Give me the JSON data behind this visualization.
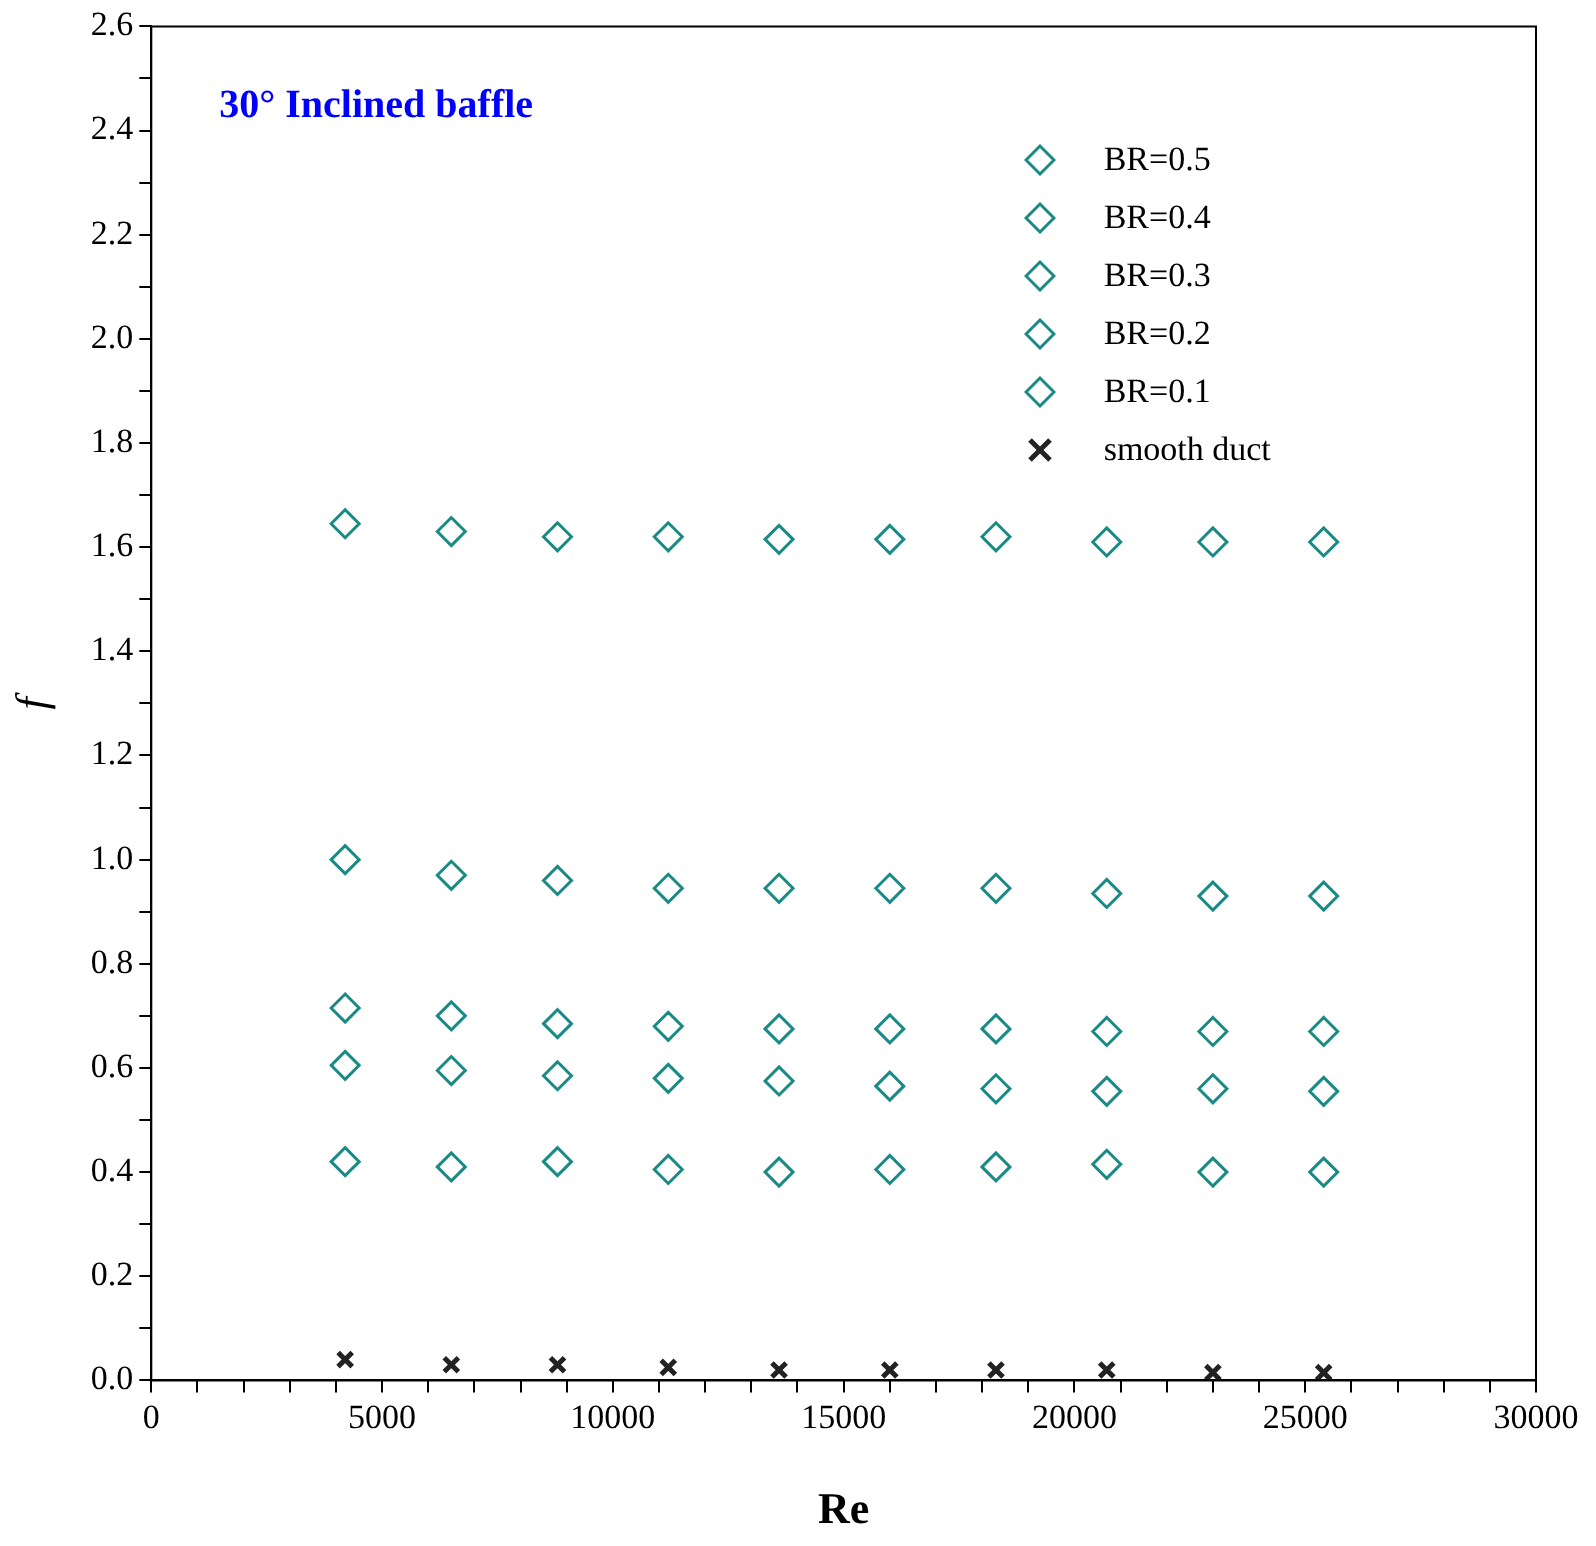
{
  "chart_data": {
    "type": "scatter",
    "xlabel": "Re",
    "ylabel": "f",
    "annotations": [
      "30° Inclined baffle"
    ],
    "x": [
      4200,
      6500,
      8800,
      11200,
      13600,
      16000,
      18300,
      20700,
      23000,
      25400
    ],
    "series": [
      {
        "name": "BR=0.5",
        "color": "#1a8a85",
        "marker": "diamond",
        "values": [
          1.645,
          1.63,
          1.62,
          1.62,
          1.615,
          1.615,
          1.62,
          1.61,
          1.61,
          1.61
        ]
      },
      {
        "name": "BR=0.4",
        "color": "#1a8a85",
        "marker": "diamond",
        "values": [
          1.0,
          0.97,
          0.96,
          0.945,
          0.945,
          0.945,
          0.945,
          0.935,
          0.93,
          0.93
        ]
      },
      {
        "name": "BR=0.3",
        "color": "#1a8a85",
        "marker": "diamond",
        "values": [
          0.715,
          0.7,
          0.685,
          0.68,
          0.675,
          0.675,
          0.675,
          0.67,
          0.67,
          0.67
        ]
      },
      {
        "name": "BR=0.2",
        "color": "#1a8a85",
        "marker": "diamond",
        "values": [
          0.605,
          0.595,
          0.585,
          0.58,
          0.575,
          0.565,
          0.56,
          0.555,
          0.56,
          0.555
        ]
      },
      {
        "name": "BR=0.1",
        "color": "#1a8a85",
        "marker": "diamond",
        "values": [
          0.42,
          0.41,
          0.42,
          0.405,
          0.4,
          0.405,
          0.41,
          0.415,
          0.4,
          0.4
        ]
      },
      {
        "name": "smooth duct",
        "color": "#222222",
        "marker": "cross",
        "values": [
          0.04,
          0.03,
          0.03,
          0.025,
          0.02,
          0.02,
          0.02,
          0.02,
          0.015,
          0.015
        ]
      }
    ],
    "xlim": [
      0,
      30000
    ],
    "xticks": [
      0,
      {
        "value": 1000,
        "label": null
      },
      {
        "value": 2000,
        "label": null
      },
      {
        "value": 3000,
        "label": null
      },
      {
        "value": 4000,
        "label": null
      },
      5000,
      {
        "value": 6000,
        "label": null
      },
      {
        "value": 7000,
        "label": null
      },
      {
        "value": 8000,
        "label": null
      },
      {
        "value": 9000,
        "label": null
      },
      10000,
      {
        "value": 11000,
        "label": null
      },
      {
        "value": 12000,
        "label": null
      },
      {
        "value": 13000,
        "label": null
      },
      {
        "value": 14000,
        "label": null
      },
      15000,
      {
        "value": 16000,
        "label": null
      },
      {
        "value": 17000,
        "label": null
      },
      {
        "value": 18000,
        "label": null
      },
      {
        "value": 19000,
        "label": null
      },
      20000,
      {
        "value": 21000,
        "label": null
      },
      {
        "value": 22000,
        "label": null
      },
      {
        "value": 23000,
        "label": null
      },
      {
        "value": 24000,
        "label": null
      },
      25000,
      {
        "value": 26000,
        "label": null
      },
      {
        "value": 27000,
        "label": null
      },
      {
        "value": 28000,
        "label": null
      },
      {
        "value": 29000,
        "label": null
      },
      30000
    ],
    "ylim": [
      0,
      2.6
    ],
    "yticks": [
      {
        "value": 0,
        "label": "0.0"
      },
      {
        "value": 0.1,
        "label": null
      },
      {
        "value": 0.2,
        "label": "0.2"
      },
      {
        "value": 0.3,
        "label": null
      },
      {
        "value": 0.4,
        "label": "0.4"
      },
      {
        "value": 0.5,
        "label": null
      },
      {
        "value": 0.6,
        "label": "0.6"
      },
      {
        "value": 0.7,
        "label": null
      },
      {
        "value": 0.8,
        "label": "0.8"
      },
      {
        "value": 0.9,
        "label": null
      },
      {
        "value": 1.0,
        "label": "1.0"
      },
      {
        "value": 1.1,
        "label": null
      },
      {
        "value": 1.2,
        "label": "1.2"
      },
      {
        "value": 1.3,
        "label": null
      },
      {
        "value": 1.4,
        "label": "1.4"
      },
      {
        "value": 1.5,
        "label": null
      },
      {
        "value": 1.6,
        "label": "1.6"
      },
      {
        "value": 1.7,
        "label": null
      },
      {
        "value": 1.8,
        "label": "1.8"
      },
      {
        "value": 1.9,
        "label": null
      },
      {
        "value": 2.0,
        "label": "2.0"
      },
      {
        "value": 2.1,
        "label": null
      },
      {
        "value": 2.2,
        "label": "2.2"
      },
      {
        "value": 2.3,
        "label": null
      },
      {
        "value": 2.4,
        "label": "2.4"
      },
      {
        "value": 2.5,
        "label": null
      },
      {
        "value": 2.6,
        "label": "2.6"
      }
    ],
    "grid": false,
    "legend": "top right"
  }
}
